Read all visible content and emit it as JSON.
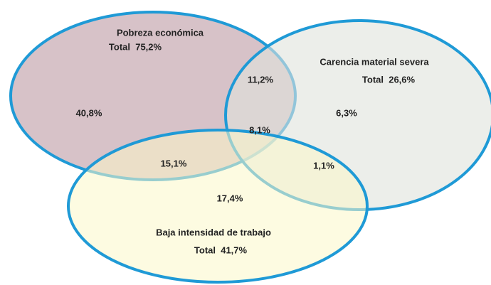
{
  "sets": [
    {
      "label": "Pobreza económica",
      "total": "Total  75,2%"
    },
    {
      "label": "Carencia material severa",
      "total": "Total  26,6%"
    },
    {
      "label": "Baja intensidad de trabajo",
      "total": "Total  41,7%"
    }
  ],
  "regions": {
    "pobreza_only": "40,8%",
    "pobreza_carencia": "11,2%",
    "carencia_only": "6,3%",
    "all_three": "8,1%",
    "pobreza_baja": "15,1%",
    "carencia_baja": "1,1%",
    "baja_only": "17,4%"
  }
}
